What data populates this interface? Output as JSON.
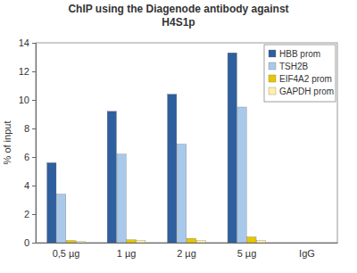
{
  "chart_data": {
    "type": "bar",
    "title": [
      "ChIP using the Diagenode antibody against",
      "H4S1p"
    ],
    "y_label": "% of input",
    "categories": [
      "0,5 µg",
      "1 µg",
      "2 µg",
      "5 µg",
      "IgG"
    ],
    "series": [
      {
        "name": "HBB prom",
        "color": "#2f5f9e",
        "values": [
          5.6,
          9.2,
          10.4,
          13.3,
          0
        ]
      },
      {
        "name": "TSH2B",
        "color": "#a9c9ea",
        "values": [
          3.4,
          6.2,
          6.9,
          9.5,
          0
        ]
      },
      {
        "name": "EIF4A2 prom",
        "color": "#e8c600",
        "values": [
          0.15,
          0.2,
          0.3,
          0.4,
          0
        ]
      },
      {
        "name": "GAPDH prom",
        "color": "#fff0a8",
        "values": [
          0.08,
          0.15,
          0.15,
          0.15,
          0
        ]
      }
    ],
    "ylim": [
      0,
      14
    ],
    "yticks": [
      0,
      2,
      4,
      6,
      8,
      10,
      12,
      14
    ],
    "grid": false,
    "legend": "top-right"
  }
}
